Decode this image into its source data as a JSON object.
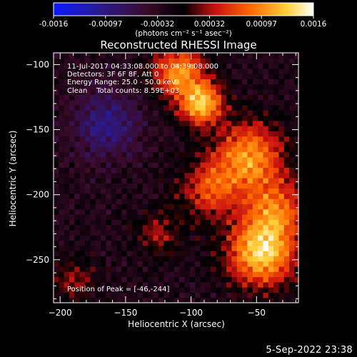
{
  "colorbar": {
    "tick_labels": [
      "-0.0016",
      "-0.00097",
      "-0.00032",
      "0.00032",
      "0.00097",
      "0.0016"
    ],
    "range": [
      -0.0016,
      0.0016
    ],
    "units_label": "(photons cm⁻² s⁻¹ asec⁻²)",
    "colors": [
      "#0a1aff",
      "#2a1a8c",
      "#3a0a2a",
      "#000000",
      "#c81010",
      "#ff6a00",
      "#ffd23c",
      "#ffffff"
    ]
  },
  "chart_data": {
    "type": "heatmap",
    "title": "Reconstructed RHESSI Image",
    "xlabel": "Heliocentric X (arcsec)",
    "ylabel": "Heliocentric Y (arcsec)",
    "xlim": [
      -205,
      -18
    ],
    "ylim": [
      -283,
      -91
    ],
    "x_ticks": [
      -200,
      -150,
      -100,
      -50
    ],
    "y_ticks": [
      -100,
      -150,
      -200,
      -250
    ],
    "annotations": [
      "11-Jul-2017 04:33:08.000 to 04:39:08.000",
      "Detectors: 3F 6F 8F, Att 0",
      "Energy Range: 25.0 - 50.0 keV",
      "Clean    Total counts: 8.59E+03"
    ],
    "peak_annotation": "Position of Peak = [-46,-244]",
    "peak": {
      "x": -46,
      "y": -244
    },
    "sources": [
      {
        "x": -46,
        "y": -244,
        "sigma": 18,
        "amplitude": 1.0
      },
      {
        "x": -92,
        "y": -130,
        "sigma": 12,
        "amplitude": 0.9
      },
      {
        "x": -110,
        "y": -105,
        "sigma": 14,
        "amplitude": 0.75
      },
      {
        "x": -55,
        "y": -170,
        "sigma": 18,
        "amplitude": 0.78
      },
      {
        "x": -35,
        "y": -210,
        "sigma": 16,
        "amplitude": 0.6
      },
      {
        "x": -85,
        "y": -195,
        "sigma": 16,
        "amplitude": 0.55
      },
      {
        "x": -125,
        "y": -230,
        "sigma": 12,
        "amplitude": 0.35
      },
      {
        "x": -190,
        "y": -265,
        "sigma": 12,
        "amplitude": 0.3
      },
      {
        "x": -165,
        "y": -145,
        "sigma": 18,
        "amplitude": -0.45
      }
    ]
  },
  "footer": {
    "timestamp": "5-Sep-2022 23:38"
  }
}
